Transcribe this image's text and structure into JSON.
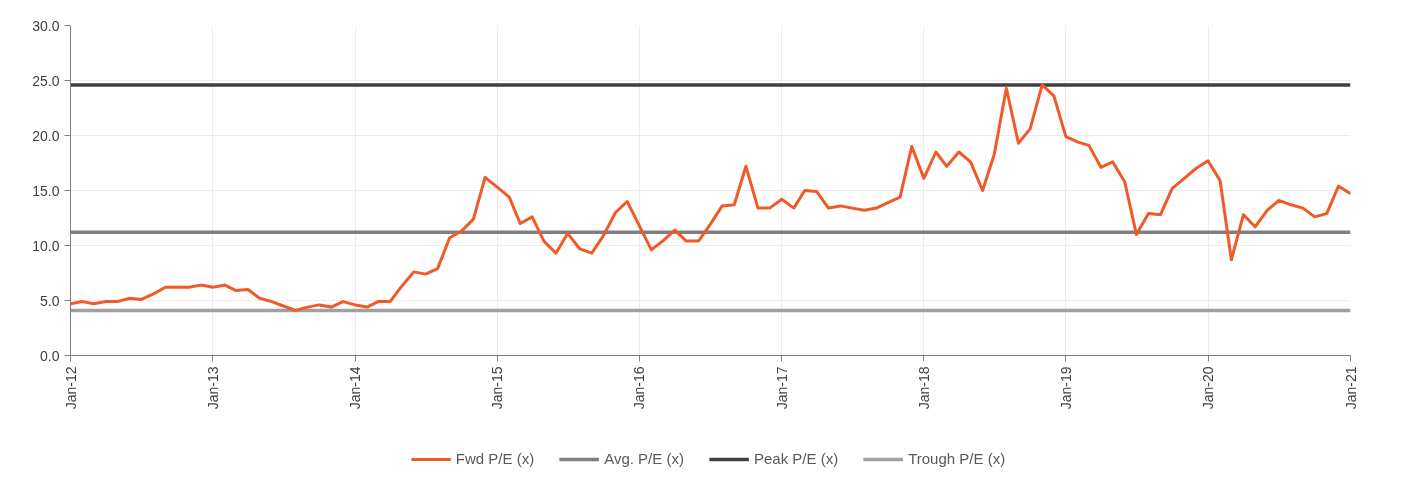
{
  "chart_data": {
    "type": "line",
    "x": [
      "2012-01",
      "2012-02",
      "2012-03",
      "2012-04",
      "2012-05",
      "2012-06",
      "2012-07",
      "2012-08",
      "2012-09",
      "2012-10",
      "2012-11",
      "2012-12",
      "2013-01",
      "2013-02",
      "2013-03",
      "2013-04",
      "2013-05",
      "2013-06",
      "2013-07",
      "2013-08",
      "2013-09",
      "2013-10",
      "2013-11",
      "2013-12",
      "2014-01",
      "2014-02",
      "2014-03",
      "2014-04",
      "2014-05",
      "2014-06",
      "2014-07",
      "2014-08",
      "2014-09",
      "2014-10",
      "2014-11",
      "2014-12",
      "2015-01",
      "2015-02",
      "2015-03",
      "2015-04",
      "2015-05",
      "2015-06",
      "2015-07",
      "2015-08",
      "2015-09",
      "2015-10",
      "2015-11",
      "2015-12",
      "2016-01",
      "2016-02",
      "2016-03",
      "2016-04",
      "2016-05",
      "2016-06",
      "2016-07",
      "2016-08",
      "2016-09",
      "2016-10",
      "2016-11",
      "2016-12",
      "2017-01",
      "2017-02",
      "2017-03",
      "2017-04",
      "2017-05",
      "2017-06",
      "2017-07",
      "2017-08",
      "2017-09",
      "2017-10",
      "2017-11",
      "2017-12",
      "2018-01",
      "2018-02",
      "2018-03",
      "2018-04",
      "2018-05",
      "2018-06",
      "2018-07",
      "2018-08",
      "2018-09",
      "2018-10",
      "2018-11",
      "2018-12",
      "2019-01",
      "2019-02",
      "2019-03",
      "2019-04",
      "2019-05",
      "2019-06",
      "2019-07",
      "2019-08",
      "2019-09",
      "2019-10",
      "2019-11",
      "2019-12",
      "2020-01",
      "2020-02",
      "2020-03",
      "2020-04",
      "2020-05",
      "2020-06",
      "2020-07",
      "2020-08",
      "2020-09",
      "2020-10",
      "2020-11",
      "2020-12",
      "2021-01"
    ],
    "series": [
      {
        "name": "Fwd P/E (x)",
        "color": "#f05a28",
        "values": [
          4.7,
          4.9,
          4.7,
          4.9,
          4.9,
          5.2,
          5.1,
          5.6,
          6.2,
          6.2,
          6.2,
          6.4,
          6.2,
          6.4,
          5.9,
          6.0,
          5.2,
          4.9,
          4.5,
          4.1,
          4.4,
          4.6,
          4.4,
          4.9,
          4.6,
          4.4,
          4.9,
          4.9,
          6.3,
          7.6,
          7.4,
          7.9,
          10.7,
          11.3,
          12.4,
          16.2,
          15.3,
          14.4,
          12.0,
          12.6,
          10.4,
          9.3,
          11.1,
          9.7,
          9.3,
          10.9,
          13.0,
          14.0,
          11.8,
          9.6,
          10.4,
          11.4,
          10.4,
          10.4,
          11.9,
          13.6,
          13.7,
          17.2,
          13.4,
          13.4,
          14.2,
          13.4,
          15.0,
          14.9,
          13.4,
          13.6,
          13.4,
          13.2,
          13.4,
          13.9,
          14.4,
          19.0,
          16.1,
          18.5,
          17.2,
          18.5,
          17.6,
          15.0,
          18.3,
          24.3,
          19.3,
          20.6,
          24.6,
          23.6,
          19.9,
          19.4,
          19.1,
          17.1,
          17.6,
          15.8,
          11.0,
          12.9,
          12.8,
          15.2,
          16.1,
          17.0,
          17.7,
          15.9,
          8.7,
          12.8,
          11.7,
          13.2,
          14.1,
          13.7,
          13.4,
          12.6,
          12.9,
          15.4,
          14.7
        ]
      }
    ],
    "ref_lines": [
      {
        "axis": "y",
        "value": 11.2,
        "label": "Avg. P/E (x)",
        "color": "#7f7f7f"
      },
      {
        "axis": "y",
        "value": 24.6,
        "label": "Peak P/E (x)",
        "color": "#404040"
      },
      {
        "axis": "y",
        "value": 4.1,
        "label": "Trough P/E (x)",
        "color": "#a0a0a0"
      }
    ],
    "xlim": [
      "2012-01",
      "2021-01"
    ],
    "xticks": [
      {
        "value": "2012-01",
        "label": "Jan-12"
      },
      {
        "value": "2013-01",
        "label": "Jan-13"
      },
      {
        "value": "2014-01",
        "label": "Jan-14"
      },
      {
        "value": "2015-01",
        "label": "Jan-15"
      },
      {
        "value": "2016-01",
        "label": "Jan-16"
      },
      {
        "value": "2017-01",
        "label": "Jan-17"
      },
      {
        "value": "2018-01",
        "label": "Jan-18"
      },
      {
        "value": "2019-01",
        "label": "Jan-19"
      },
      {
        "value": "2020-01",
        "label": "Jan-20"
      },
      {
        "value": "2021-01",
        "label": "Jan-21"
      }
    ],
    "ylim": [
      0,
      30
    ],
    "yticks": [
      {
        "value": 0,
        "label": "0.0"
      },
      {
        "value": 5,
        "label": "5.0"
      },
      {
        "value": 10,
        "label": "10.0"
      },
      {
        "value": 15,
        "label": "15.0"
      },
      {
        "value": 20,
        "label": "20.0"
      },
      {
        "value": 25,
        "label": "25.0"
      },
      {
        "value": 30,
        "label": "30.0"
      }
    ],
    "grid": true,
    "legend": "bottom",
    "line_style": "solid",
    "marker": "none"
  }
}
